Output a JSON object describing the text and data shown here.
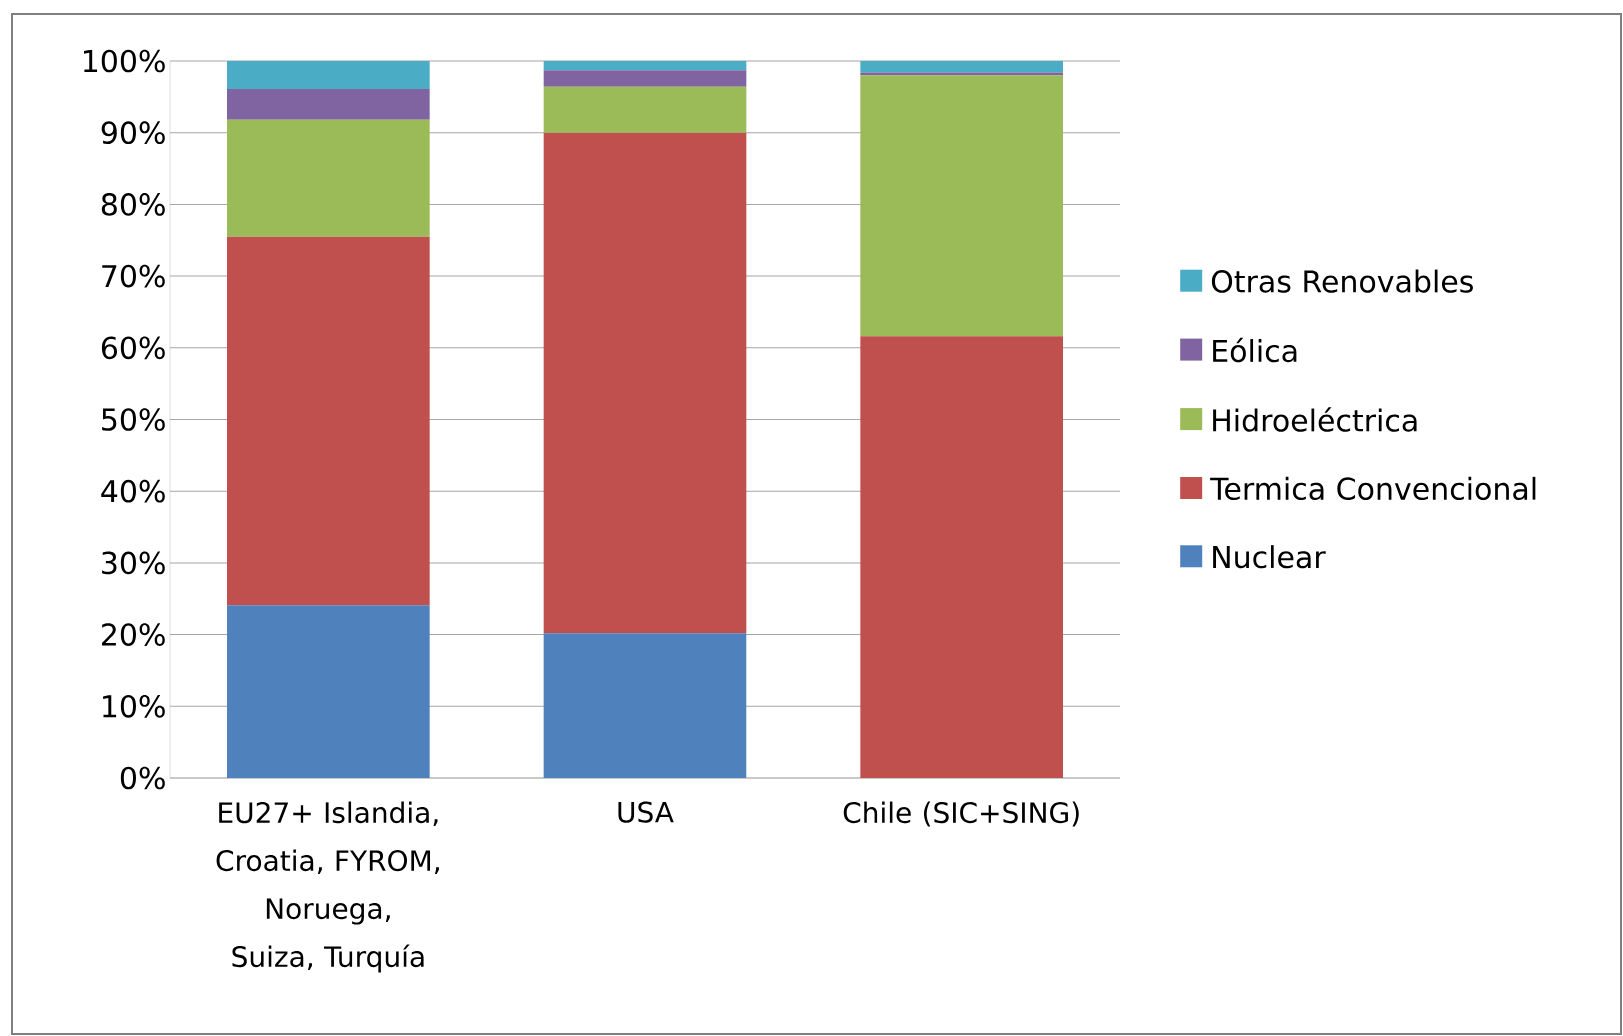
{
  "chart_data": {
    "type": "bar",
    "stacked": true,
    "categories": [
      "EU27+ Islandia, Croatia, FYROM, Noruega, Suiza, Turquía",
      "USA",
      "Chile (SIC+SING)"
    ],
    "series": [
      {
        "name": "Nuclear",
        "color": "#4f81bd",
        "values": [
          24.1,
          20.2,
          0
        ]
      },
      {
        "name": "Termica Convencional",
        "color": "#c0504d",
        "values": [
          51.4,
          69.8,
          61.6
        ]
      },
      {
        "name": "Hidroeléctrica",
        "color": "#9bbb59",
        "values": [
          16.3,
          6.4,
          36.4
        ]
      },
      {
        "name": "Eólica",
        "color": "#8064a2",
        "values": [
          4.3,
          2.3,
          0.4
        ]
      },
      {
        "name": "Otras Renovables",
        "color": "#4bacc6",
        "values": [
          3.9,
          1.3,
          1.6
        ]
      }
    ],
    "ylim": [
      0,
      100
    ],
    "yticks": [
      {
        "value": 0,
        "label": "0%"
      },
      {
        "value": 10,
        "label": "10%"
      },
      {
        "value": 20,
        "label": "20%"
      },
      {
        "value": 30,
        "label": "30%"
      },
      {
        "value": 40,
        "label": "40%"
      },
      {
        "value": 50,
        "label": "50%"
      },
      {
        "value": 60,
        "label": "60%"
      },
      {
        "value": 70,
        "label": "70%"
      },
      {
        "value": 80,
        "label": "80%"
      },
      {
        "value": 90,
        "label": "90%"
      },
      {
        "value": 100,
        "label": "100%"
      }
    ],
    "grid": "y",
    "legend": "right"
  }
}
